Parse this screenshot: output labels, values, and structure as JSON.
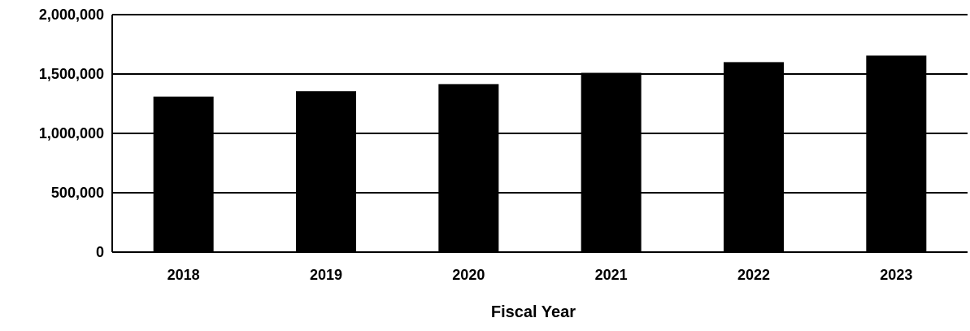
{
  "chart_data": {
    "type": "bar",
    "title": "",
    "xlabel": "Fiscal Year",
    "ylabel": "",
    "categories": [
      "2018",
      "2019",
      "2020",
      "2021",
      "2022",
      "2023"
    ],
    "values": [
      1310000,
      1355000,
      1415000,
      1510000,
      1600000,
      1655000
    ],
    "ylim": [
      0,
      2000000
    ],
    "yticks": [
      0,
      500000,
      1000000,
      1500000,
      2000000
    ],
    "ytick_labels": [
      "0",
      "500,000",
      "1,000,000",
      "1,500,000",
      "2,000,000"
    ],
    "grid": true,
    "legend": "none",
    "colors": {
      "bar": "#000000",
      "grid": "#000000",
      "background": "#ffffff"
    }
  }
}
